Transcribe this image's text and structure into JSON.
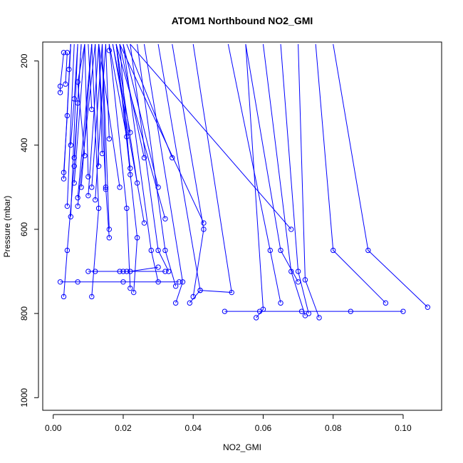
{
  "chart_data": {
    "type": "line",
    "title": "ATOM1 Northbound NO2_GMI",
    "xlabel": "NO2_GMI",
    "ylabel": "Pressure (mbar)",
    "xlim": [
      -0.003,
      0.111
    ],
    "ylim": [
      1030,
      155
    ],
    "y_reversed": true,
    "x_ticks": [
      0.0,
      0.02,
      0.04,
      0.06,
      0.08,
      0.1
    ],
    "x_tick_labels": [
      "0.00",
      "0.02",
      "0.04",
      "0.06",
      "0.08",
      "0.10"
    ],
    "y_ticks": [
      200,
      400,
      600,
      800,
      1000
    ],
    "y_tick_labels": [
      "200",
      "400",
      "600",
      "800",
      "1000"
    ],
    "series_color": "#0000ff",
    "marker": "open-circle",
    "profiles": [
      [
        [
          0.002,
          275
        ],
        [
          0.002,
          260
        ],
        [
          0.003,
          180
        ]
      ],
      [
        [
          0.0035,
          255
        ],
        [
          0.004,
          180
        ]
      ],
      [
        [
          0.003,
          465
        ],
        [
          0.004,
          330
        ],
        [
          0.005,
          160
        ]
      ],
      [
        [
          0.003,
          480
        ],
        [
          0.005,
          160
        ]
      ],
      [
        [
          0.004,
          545
        ],
        [
          0.006,
          160
        ]
      ],
      [
        [
          0.005,
          570
        ],
        [
          0.007,
          160
        ]
      ],
      [
        [
          0.0045,
          220
        ],
        [
          0.005,
          160
        ]
      ],
      [
        [
          0.005,
          400
        ],
        [
          0.006,
          290
        ],
        [
          0.007,
          160
        ]
      ],
      [
        [
          0.006,
          430
        ],
        [
          0.007,
          300
        ],
        [
          0.008,
          160
        ]
      ],
      [
        [
          0.006,
          490
        ],
        [
          0.009,
          160
        ]
      ],
      [
        [
          0.007,
          525
        ],
        [
          0.011,
          160
        ]
      ],
      [
        [
          0.007,
          545
        ],
        [
          0.012,
          160
        ]
      ],
      [
        [
          0.008,
          500
        ],
        [
          0.011,
          160
        ]
      ],
      [
        [
          0.009,
          425
        ],
        [
          0.007,
          250
        ],
        [
          0.009,
          160
        ]
      ],
      [
        [
          0.01,
          520
        ],
        [
          0.013,
          160
        ]
      ],
      [
        [
          0.01,
          475
        ],
        [
          0.009,
          160
        ]
      ],
      [
        [
          0.011,
          315
        ],
        [
          0.01,
          160
        ]
      ],
      [
        [
          0.011,
          500
        ],
        [
          0.014,
          160
        ]
      ],
      [
        [
          0.012,
          530
        ],
        [
          0.015,
          160
        ]
      ],
      [
        [
          0.013,
          450
        ],
        [
          0.012,
          160
        ]
      ],
      [
        [
          0.014,
          420
        ],
        [
          0.013,
          160
        ]
      ],
      [
        [
          0.015,
          505
        ],
        [
          0.014,
          160
        ]
      ],
      [
        [
          0.016,
          175
        ],
        [
          0.016,
          160
        ]
      ],
      [
        [
          0.016,
          385
        ],
        [
          0.015,
          160
        ]
      ],
      [
        [
          0.016,
          600
        ],
        [
          0.014,
          160
        ]
      ],
      [
        [
          0.019,
          500
        ],
        [
          0.013,
          160
        ]
      ],
      [
        [
          0.021,
          380
        ],
        [
          0.016,
          160
        ]
      ],
      [
        [
          0.022,
          370
        ],
        [
          0.017,
          160
        ]
      ],
      [
        [
          0.022,
          455
        ],
        [
          0.018,
          160
        ]
      ],
      [
        [
          0.022,
          470
        ],
        [
          0.019,
          160
        ]
      ],
      [
        [
          0.03,
          500
        ],
        [
          0.02,
          160
        ]
      ],
      [
        [
          0.034,
          430
        ],
        [
          0.021,
          160
        ]
      ],
      [
        [
          0.026,
          430
        ],
        [
          0.019,
          160
        ]
      ],
      [
        [
          0.024,
          490
        ],
        [
          0.018,
          160
        ]
      ],
      [
        [
          0.026,
          585
        ],
        [
          0.017,
          160
        ]
      ],
      [
        [
          0.032,
          575
        ],
        [
          0.018,
          160
        ]
      ],
      [
        [
          0.043,
          585
        ],
        [
          0.019,
          160
        ]
      ],
      [
        [
          0.068,
          600
        ],
        [
          0.022,
          160
        ]
      ],
      [
        [
          0.003,
          760
        ],
        [
          0.004,
          650
        ],
        [
          0.006,
          450
        ],
        [
          0.008,
          160
        ]
      ],
      [
        [
          0.002,
          725
        ],
        [
          0.007,
          725
        ],
        [
          0.02,
          725
        ],
        [
          0.036,
          725
        ]
      ],
      [
        [
          0.01,
          700
        ],
        [
          0.012,
          700
        ],
        [
          0.02,
          700
        ],
        [
          0.032,
          700
        ]
      ],
      [
        [
          0.011,
          760
        ],
        [
          0.013,
          550
        ],
        [
          0.011,
          160
        ]
      ],
      [
        [
          0.016,
          620
        ],
        [
          0.015,
          500
        ],
        [
          0.013,
          160
        ]
      ],
      [
        [
          0.019,
          700
        ],
        [
          0.021,
          700
        ],
        [
          0.022,
          700
        ],
        [
          0.03,
          690
        ]
      ],
      [
        [
          0.022,
          740
        ],
        [
          0.021,
          550
        ],
        [
          0.016,
          160
        ]
      ],
      [
        [
          0.023,
          750
        ],
        [
          0.024,
          620
        ],
        [
          0.018,
          160
        ]
      ],
      [
        [
          0.03,
          725
        ],
        [
          0.028,
          650
        ],
        [
          0.02,
          160
        ]
      ],
      [
        [
          0.033,
          700
        ],
        [
          0.03,
          650
        ],
        [
          0.022,
          160
        ]
      ],
      [
        [
          0.035,
          735
        ],
        [
          0.032,
          650
        ],
        [
          0.024,
          160
        ]
      ],
      [
        [
          0.035,
          775
        ],
        [
          0.037,
          725
        ],
        [
          0.026,
          160
        ]
      ],
      [
        [
          0.039,
          775
        ],
        [
          0.042,
          745
        ],
        [
          0.03,
          160
        ]
      ],
      [
        [
          0.04,
          760
        ],
        [
          0.043,
          600
        ],
        [
          0.034,
          160
        ]
      ],
      [
        [
          0.042,
          745
        ],
        [
          0.051,
          750
        ],
        [
          0.04,
          160
        ]
      ],
      [
        [
          0.049,
          795
        ],
        [
          0.059,
          795
        ],
        [
          0.071,
          795
        ],
        [
          0.085,
          795
        ],
        [
          0.1,
          795
        ]
      ],
      [
        [
          0.058,
          810
        ],
        [
          0.06,
          790
        ],
        [
          0.055,
          160
        ]
      ],
      [
        [
          0.065,
          775
        ],
        [
          0.062,
          650
        ],
        [
          0.05,
          160
        ]
      ],
      [
        [
          0.07,
          725
        ],
        [
          0.065,
          650
        ],
        [
          0.055,
          160
        ]
      ],
      [
        [
          0.072,
          805
        ],
        [
          0.068,
          700
        ],
        [
          0.06,
          160
        ]
      ],
      [
        [
          0.073,
          800
        ],
        [
          0.07,
          700
        ],
        [
          0.065,
          160
        ]
      ],
      [
        [
          0.076,
          810
        ],
        [
          0.072,
          720
        ],
        [
          0.07,
          160
        ]
      ],
      [
        [
          0.095,
          775
        ],
        [
          0.08,
          650
        ],
        [
          0.075,
          160
        ]
      ],
      [
        [
          0.107,
          785
        ],
        [
          0.09,
          650
        ],
        [
          0.08,
          160
        ]
      ]
    ]
  }
}
